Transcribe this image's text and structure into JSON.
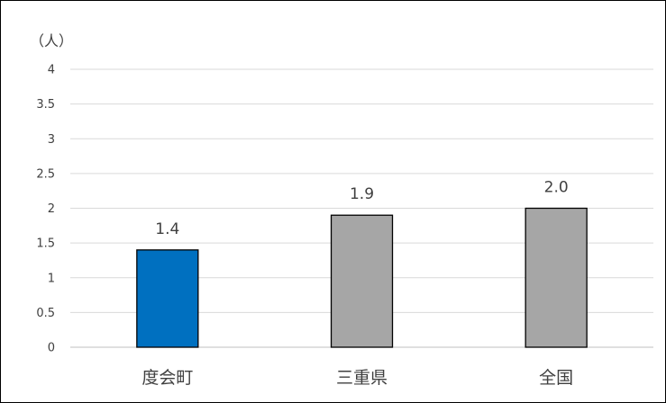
{
  "chart_data": {
    "type": "bar",
    "unit_label": "（人）",
    "categories": [
      "度会町",
      "三重県",
      "全国"
    ],
    "values": [
      1.4,
      1.9,
      2.0
    ],
    "data_labels": [
      "1.4",
      "1.9",
      "2.0"
    ],
    "bar_colors": [
      "#0070C0",
      "#A6A6A6",
      "#A6A6A6"
    ],
    "bar_outline_color": "#000000",
    "ylim": [
      0,
      4
    ],
    "yticks": [
      0,
      0.5,
      1,
      1.5,
      2,
      2.5,
      3,
      3.5,
      4
    ],
    "ytick_labels": [
      "0",
      "0.5",
      "1",
      "1.5",
      "2",
      "2.5",
      "3",
      "3.5",
      "4"
    ],
    "grid": true,
    "gridline_color": "#D9D9D9",
    "legend": "none"
  }
}
